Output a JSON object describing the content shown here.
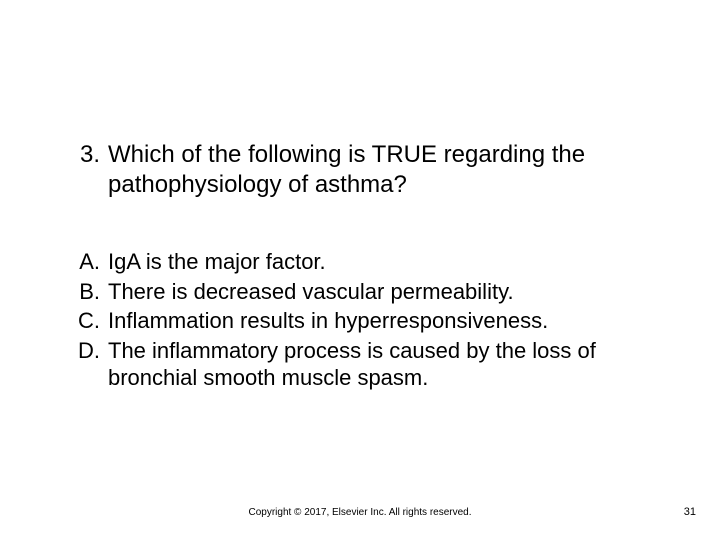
{
  "question": {
    "number": "3.",
    "text": "Which of the following is TRUE regarding the pathophysiology of asthma?"
  },
  "options": [
    {
      "label": "A.",
      "text": "IgA is the major factor."
    },
    {
      "label": "B.",
      "text": "There is decreased vascular permeability."
    },
    {
      "label": "C.",
      "text": "Inflammation results in hyperresponsiveness."
    },
    {
      "label": "D.",
      "text": "The inflammatory process is caused by the loss of bronchial smooth muscle spasm."
    }
  ],
  "footer": {
    "copyright": "Copyright © 2017, Elsevier Inc. All rights reserved.",
    "page_number": "31"
  },
  "style": {
    "background_color": "#ffffff",
    "text_color": "#000000",
    "question_fontsize": 24,
    "option_fontsize": 22,
    "footer_fontsize": 10,
    "pagenum_fontsize": 11,
    "font_family": "Arial"
  }
}
